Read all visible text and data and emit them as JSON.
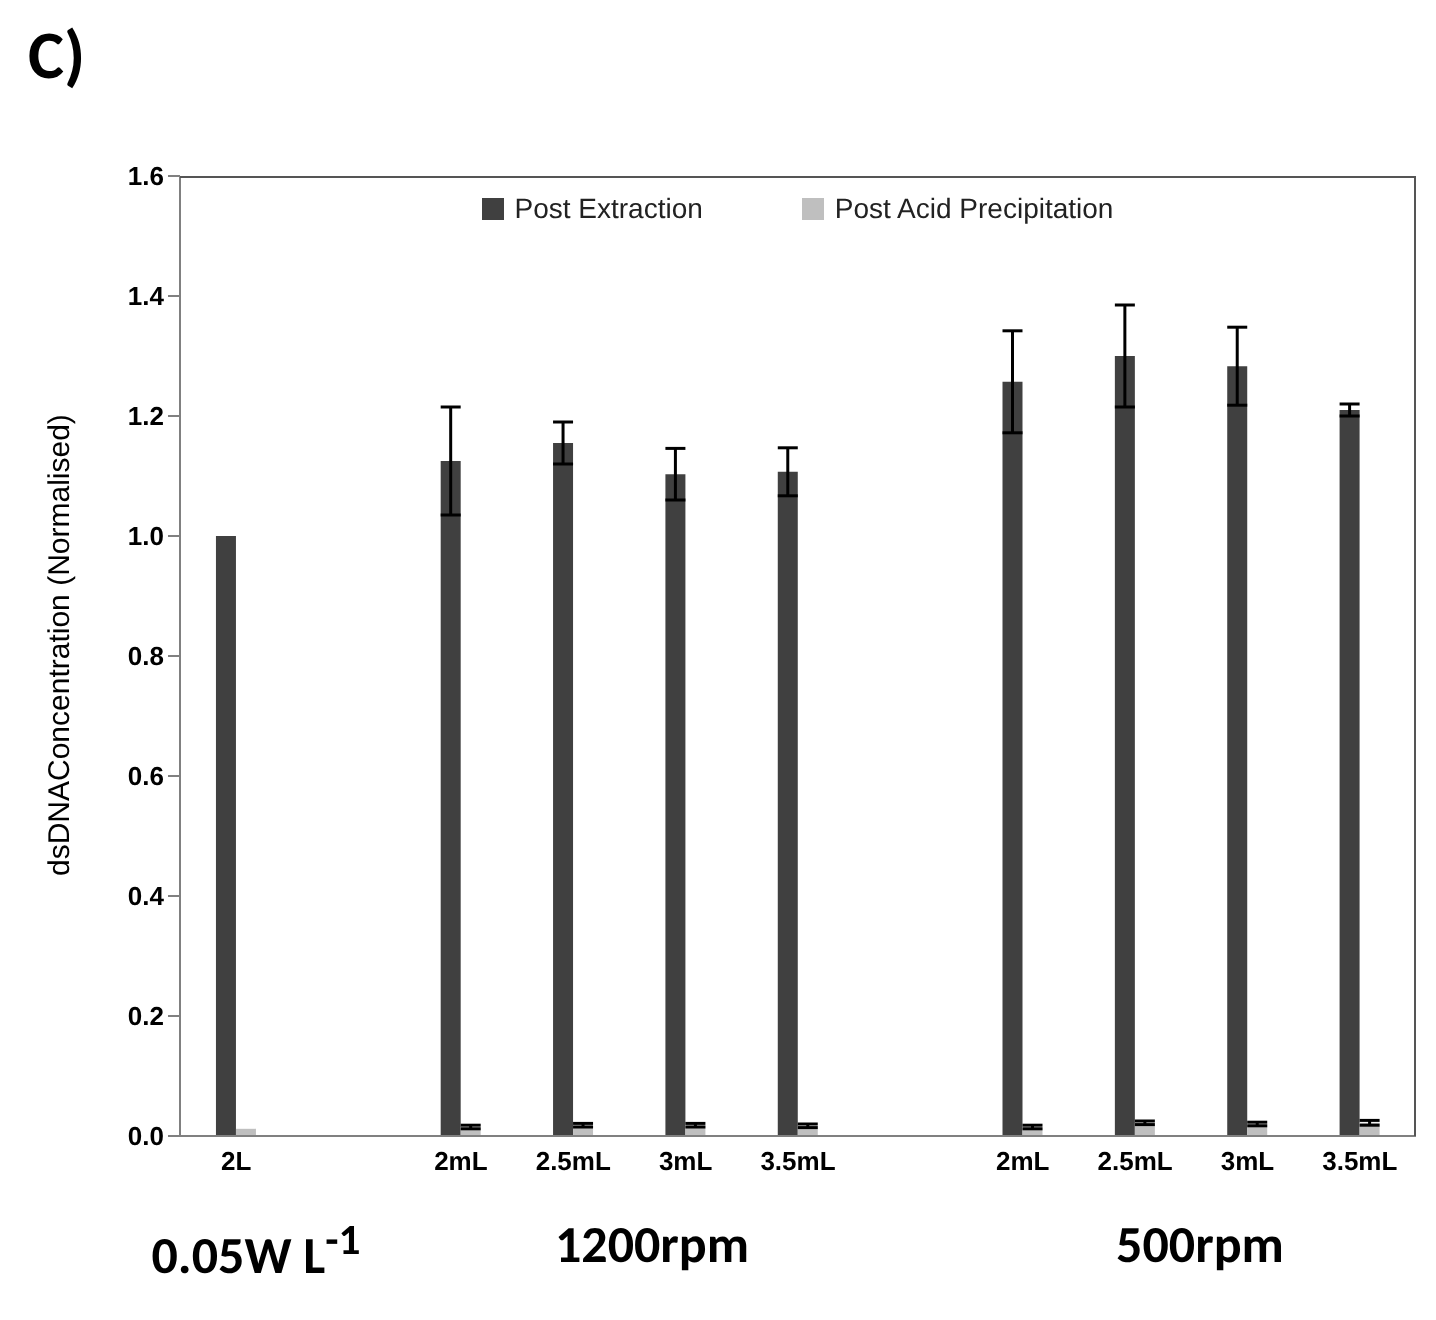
{
  "chart_data": {
    "type": "bar",
    "title": "C)",
    "ylabel": "dsDNAConcentration (Normalised)",
    "categories": [
      "2L",
      null,
      "2mL",
      "2.5mL",
      "3mL",
      "3.5mL",
      null,
      "2mL",
      "2.5mL",
      "3mL",
      "3.5mL"
    ],
    "series": [
      {
        "name": "Post Extraction",
        "color": "#404040",
        "values": [
          1.0,
          null,
          1.125,
          1.155,
          1.103,
          1.107,
          null,
          1.257,
          1.3,
          1.283,
          1.21
        ],
        "errors": [
          null,
          null,
          0.09,
          0.035,
          0.043,
          0.04,
          null,
          0.085,
          0.085,
          0.065,
          0.01
        ]
      },
      {
        "name": "Post Acid Precipitation",
        "color": "#bfbfbf",
        "values": [
          0.012,
          null,
          0.015,
          0.018,
          0.018,
          0.017,
          null,
          0.015,
          0.022,
          0.02,
          0.022
        ],
        "errors": [
          null,
          null,
          0.003,
          0.003,
          0.003,
          0.003,
          null,
          0.003,
          0.003,
          0.003,
          0.004
        ]
      }
    ],
    "ylim": [
      0,
      1.6
    ],
    "yticks": [
      {
        "value": 0,
        "label": "0.0"
      },
      {
        "value": 0.2,
        "label": "0.2"
      },
      {
        "value": 0.4,
        "label": "0.4"
      },
      {
        "value": 0.6,
        "label": "0.6"
      },
      {
        "value": 0.8,
        "label": "0.8"
      },
      {
        "value": 1.0,
        "label": "1.0"
      },
      {
        "value": 1.2,
        "label": "1.2"
      },
      {
        "value": 1.4,
        "label": "1.4"
      },
      {
        "value": 1.6,
        "label": "1.6"
      }
    ],
    "grid": false,
    "legend": "top",
    "annotations": [
      "0.05W L$^{-1}$",
      "1200rpm",
      "500rpm"
    ]
  }
}
